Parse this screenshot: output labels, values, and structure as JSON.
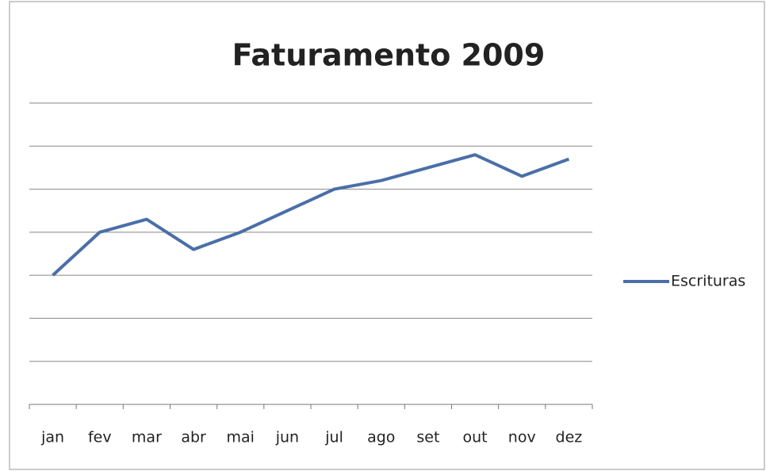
{
  "chart_data": {
    "type": "line",
    "title": "Faturamento 2009",
    "categories": [
      "jan",
      "fev",
      "mar",
      "abr",
      "mai",
      "jun",
      "jul",
      "ago",
      "set",
      "out",
      "nov",
      "dez"
    ],
    "series": [
      {
        "name": "Escrituras",
        "color": "#4a6fa8",
        "values": [
          3.0,
          4.0,
          4.3,
          3.6,
          4.0,
          4.5,
          5.0,
          5.2,
          5.5,
          5.8,
          5.3,
          5.7
        ]
      }
    ],
    "ylim": [
      0,
      7
    ],
    "yticks": [
      0,
      1,
      2,
      3,
      4,
      5,
      6,
      7
    ],
    "grid": true,
    "legend": "right"
  }
}
